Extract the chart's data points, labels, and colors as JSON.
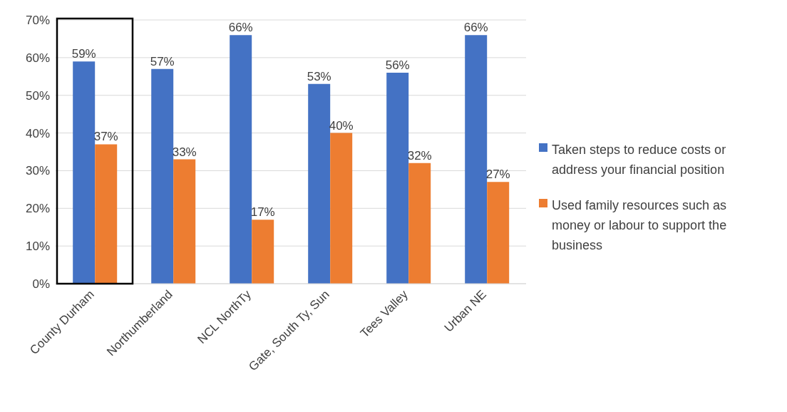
{
  "chart_data": {
    "type": "bar",
    "categories": [
      "County Durham",
      "Northumberland",
      "NCL NorthTy",
      "Gate, South Ty, Sun",
      "Tees Valley",
      "Urban NE"
    ],
    "series": [
      {
        "name": "Taken steps to reduce costs or address your financial position",
        "color": "#4472c4",
        "values": [
          59,
          57,
          66,
          53,
          56,
          66
        ],
        "value_labels": [
          "59%",
          "57%",
          "66%",
          "53%",
          "56%",
          "66%"
        ]
      },
      {
        "name": "Used family resources such as money or labour to support the business",
        "color": "#ed7d31",
        "values": [
          37,
          33,
          17,
          40,
          32,
          27
        ],
        "value_labels": [
          "37%",
          "33%",
          "17%",
          "40%",
          "32%",
          "27%"
        ]
      }
    ],
    "ylim": [
      0,
      70
    ],
    "yticks": [
      {
        "value": 0,
        "label": "0%"
      },
      {
        "value": 10,
        "label": "10%"
      },
      {
        "value": 20,
        "label": "20%"
      },
      {
        "value": 30,
        "label": "30%"
      },
      {
        "value": 40,
        "label": "40%"
      },
      {
        "value": 50,
        "label": "50%"
      },
      {
        "value": 60,
        "label": "60%"
      },
      {
        "value": 70,
        "label": "70%"
      }
    ],
    "grid": "y",
    "legend": "right"
  }
}
